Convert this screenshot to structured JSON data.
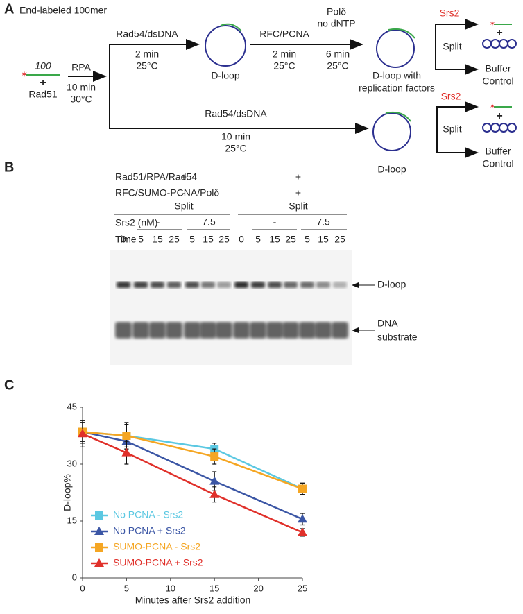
{
  "panel_a": {
    "label": "A",
    "title": "End-labeled 100mer",
    "substrate_length": 100,
    "plus": "+",
    "protein": "Rad51",
    "first_step": [
      "RPA",
      "10 min",
      "30°C"
    ],
    "top": {
      "step1": [
        "Rad54/dsDNA",
        "2 min",
        "25°C"
      ],
      "product1": "D-loop",
      "step2": [
        "RFC/PCNA",
        "2 min",
        "25°C"
      ],
      "step3": [
        "Polδ",
        "no dNTP",
        "6 min",
        "25°C"
      ],
      "product2": [
        "D-loop with",
        "replication factors"
      ],
      "treatment": "Srs2",
      "plus": "+",
      "split": "Split",
      "control": [
        "Buffer",
        "Control"
      ]
    },
    "bottom": {
      "step": [
        "Rad54/dsDNA",
        "10 min",
        "25°C"
      ],
      "product": "D-loop",
      "treatment": "Srs2",
      "plus": "+",
      "split": "Split",
      "control": [
        "Buffer",
        "Control"
      ]
    }
  },
  "panel_b": {
    "label": "B",
    "rows": [
      "Rad51/RPA/Rad54",
      "RFC/SUMO-PCNA/Polδ"
    ],
    "group1": [
      "+",
      "-"
    ],
    "group2": [
      "+",
      "+"
    ],
    "split": [
      "Split",
      "Split"
    ],
    "srs2_label": "Srs2 (nM)",
    "srs2": [
      "-",
      "7.5",
      "-",
      "7.5"
    ],
    "time_label": "Time",
    "times": [
      0,
      5,
      15,
      25,
      5,
      15,
      25,
      0,
      5,
      15,
      25,
      5,
      15,
      25
    ],
    "bands": [
      "D-loop",
      [
        "DNA",
        "substrate"
      ]
    ]
  },
  "chart_data": {
    "type": "line",
    "panel_label": "C",
    "xlabel": "Minutes after Srs2 addition",
    "ylabel": "D-loop%",
    "x": [
      0,
      5,
      15,
      25
    ],
    "xlim": [
      0,
      25
    ],
    "xticks": [
      0,
      5,
      10,
      15,
      20,
      25
    ],
    "ylim": [
      0,
      45
    ],
    "yticks": [
      0,
      15,
      30,
      45
    ],
    "legend": "lower left",
    "series": [
      {
        "name": "No PCNA - Srs2",
        "color": "#5bc8e2",
        "marker": "square",
        "values": [
          38.5,
          37.5,
          34,
          23.5
        ],
        "errors": [
          2.5,
          3,
          1.5,
          1.5
        ]
      },
      {
        "name": "No PCNA + Srs2",
        "color": "#3b56a5",
        "marker": "triangle",
        "values": [
          38.5,
          36,
          25.5,
          15.5
        ],
        "errors": [
          2.5,
          2,
          2.5,
          1.5
        ]
      },
      {
        "name": "SUMO-PCNA - Srs2",
        "color": "#f5a623",
        "marker": "square",
        "values": [
          38.5,
          37.5,
          32,
          23.5
        ],
        "errors": [
          3,
          3.5,
          2,
          1.5
        ]
      },
      {
        "name": "SUMO-PCNA + Srs2",
        "color": "#e0302a",
        "marker": "triangle",
        "values": [
          38,
          33,
          22,
          12
        ],
        "errors": [
          3.5,
          3,
          2,
          1
        ]
      }
    ]
  }
}
